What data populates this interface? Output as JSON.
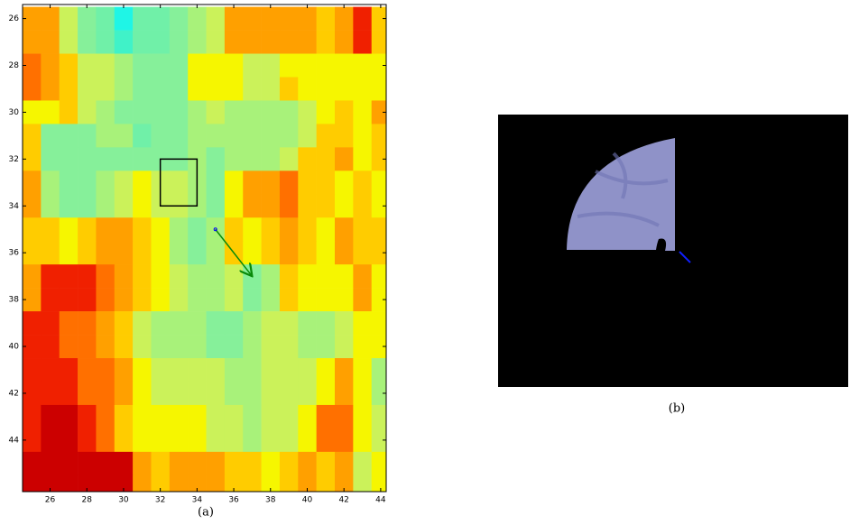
{
  "chart_data": {
    "type": "heatmap",
    "x": [
      25,
      26,
      27,
      28,
      29,
      30,
      31,
      32,
      33,
      34,
      35,
      36,
      37,
      38,
      39,
      40,
      41,
      42,
      43,
      44
    ],
    "y": [
      26,
      27,
      28,
      29,
      30,
      31,
      32,
      33,
      34,
      35,
      36,
      37,
      38,
      39,
      40,
      41,
      42,
      43,
      44,
      45,
      46
    ],
    "values": [
      [
        8,
        8,
        5,
        3,
        2,
        0,
        2,
        2,
        3,
        4,
        5,
        8,
        8,
        8,
        8,
        8,
        7,
        8,
        10,
        7
      ],
      [
        8,
        8,
        5,
        3,
        2,
        1,
        2,
        2,
        3,
        4,
        5,
        8,
        8,
        8,
        8,
        8,
        7,
        8,
        10,
        7
      ],
      [
        9,
        8,
        7,
        5,
        5,
        4,
        3,
        3,
        3,
        6,
        6,
        6,
        5,
        5,
        6,
        6,
        6,
        6,
        6,
        6
      ],
      [
        9,
        8,
        7,
        5,
        5,
        4,
        3,
        3,
        3,
        6,
        6,
        6,
        5,
        5,
        7,
        6,
        6,
        6,
        6,
        6
      ],
      [
        6,
        6,
        7,
        5,
        4,
        3,
        3,
        3,
        3,
        4,
        5,
        4,
        4,
        4,
        4,
        5,
        6,
        7,
        6,
        8
      ],
      [
        7,
        3,
        3,
        3,
        4,
        4,
        2,
        3,
        3,
        4,
        4,
        4,
        4,
        4,
        4,
        5,
        7,
        7,
        6,
        7
      ],
      [
        7,
        3,
        3,
        3,
        3,
        3,
        3,
        3,
        3,
        4,
        3,
        4,
        4,
        4,
        5,
        7,
        7,
        8,
        6,
        7
      ],
      [
        8,
        4,
        3,
        3,
        4,
        5,
        6,
        5,
        5,
        4,
        3,
        6,
        8,
        8,
        9,
        7,
        7,
        6,
        7,
        6
      ],
      [
        8,
        4,
        3,
        3,
        4,
        5,
        6,
        5,
        5,
        4,
        3,
        6,
        8,
        8,
        9,
        7,
        7,
        6,
        7,
        6
      ],
      [
        7,
        7,
        6,
        7,
        8,
        8,
        7,
        6,
        4,
        3,
        4,
        7,
        6,
        7,
        8,
        7,
        6,
        8,
        7,
        7
      ],
      [
        7,
        7,
        6,
        7,
        8,
        8,
        7,
        6,
        4,
        3,
        4,
        7,
        6,
        7,
        8,
        7,
        6,
        8,
        7,
        7
      ],
      [
        8,
        10,
        10,
        10,
        9,
        8,
        7,
        6,
        5,
        4,
        4,
        5,
        3,
        4,
        7,
        6,
        6,
        6,
        8,
        6
      ],
      [
        8,
        10,
        10,
        10,
        9,
        8,
        7,
        6,
        5,
        4,
        4,
        5,
        3,
        4,
        7,
        6,
        6,
        6,
        8,
        6
      ],
      [
        10,
        10,
        9,
        9,
        8,
        7,
        5,
        4,
        4,
        4,
        3,
        3,
        4,
        5,
        5,
        4,
        4,
        5,
        6,
        6
      ],
      [
        10,
        10,
        9,
        9,
        8,
        7,
        5,
        4,
        4,
        4,
        3,
        3,
        4,
        5,
        5,
        4,
        4,
        5,
        6,
        6
      ],
      [
        10,
        10,
        10,
        9,
        9,
        8,
        6,
        5,
        5,
        5,
        5,
        4,
        4,
        5,
        5,
        5,
        6,
        8,
        6,
        4
      ],
      [
        10,
        10,
        10,
        9,
        9,
        8,
        6,
        5,
        5,
        5,
        5,
        4,
        4,
        5,
        5,
        5,
        6,
        8,
        6,
        4
      ],
      [
        10,
        11,
        11,
        10,
        9,
        7,
        6,
        6,
        6,
        6,
        5,
        5,
        4,
        5,
        5,
        6,
        9,
        9,
        6,
        5
      ],
      [
        10,
        11,
        11,
        10,
        9,
        7,
        6,
        6,
        6,
        6,
        5,
        5,
        4,
        5,
        5,
        6,
        9,
        9,
        6,
        5
      ],
      [
        11,
        11,
        11,
        11,
        11,
        11,
        8,
        7,
        8,
        8,
        8,
        7,
        7,
        6,
        7,
        8,
        7,
        8,
        5,
        6
      ],
      [
        11,
        11,
        11,
        11,
        11,
        11,
        8,
        7,
        8,
        8,
        8,
        7,
        7,
        6,
        7,
        8,
        7,
        8,
        5,
        6
      ]
    ],
    "colormap": [
      "#1ff5e6",
      "#40f2c8",
      "#70f0a8",
      "#86f09a",
      "#a8f27a",
      "#cbf25a",
      "#f6f600",
      "#ffcc00",
      "#ffa000",
      "#ff7000",
      "#f02000",
      "#cc0000"
    ],
    "xlim": [
      24.5,
      44.3
    ],
    "ylim": [
      25.4,
      46.2
    ],
    "xticks": [
      26,
      28,
      30,
      32,
      34,
      36,
      38,
      40,
      42,
      44
    ],
    "yticks": [
      26,
      28,
      30,
      32,
      34,
      36,
      38,
      40,
      42,
      44
    ],
    "box": {
      "x": [
        32,
        34
      ],
      "y": [
        32,
        34
      ],
      "color": "#000000"
    },
    "arrow": {
      "x": [
        35,
        37
      ],
      "y": [
        35,
        37
      ],
      "color": "#0a8a0a"
    },
    "captions": [
      "(a)",
      "(b)"
    ]
  }
}
